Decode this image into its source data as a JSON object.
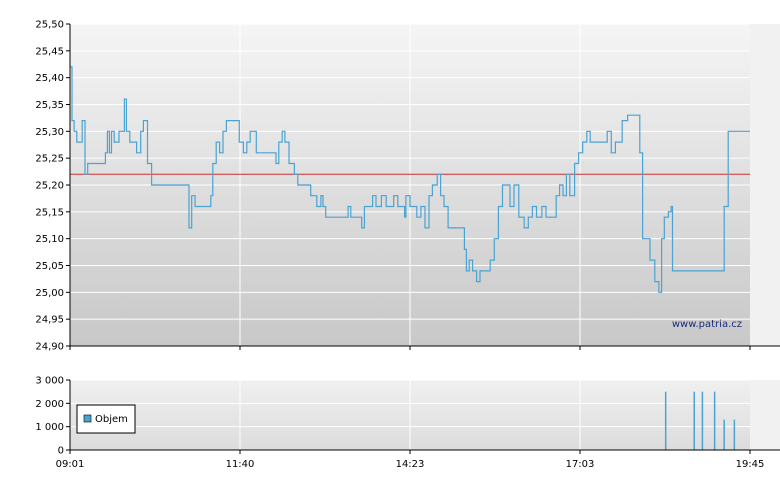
{
  "watermark": "www.patria.cz",
  "colors": {
    "price_line": "#4aa3d1",
    "reference_line": "#cc3333",
    "volume_bar": "#4aa3d1",
    "grid": "#ffffff",
    "axis": "#000000"
  },
  "chart_data": [
    {
      "type": "line",
      "title": "",
      "xlabel": "",
      "ylabel": "",
      "x_ticks": [
        "09:01",
        "11:40",
        "14:23",
        "17:03",
        "19:45"
      ],
      "y_ticks": [
        "24,90",
        "24,95",
        "25,00",
        "25,05",
        "25,10",
        "25,15",
        "25,20",
        "25,25",
        "25,30",
        "25,35",
        "25,40",
        "25,45",
        "25,50"
      ],
      "ylim": [
        24.9,
        25.5
      ],
      "grid": true,
      "reference_line": 25.22,
      "series": [
        {
          "values": [
            [
              0.0,
              25.42
            ],
            [
              0.3,
              25.32
            ],
            [
              0.6,
              25.3
            ],
            [
              1.0,
              25.28
            ],
            [
              1.4,
              25.28
            ],
            [
              1.8,
              25.32
            ],
            [
              2.2,
              25.22
            ],
            [
              2.6,
              25.24
            ],
            [
              3.2,
              25.24
            ],
            [
              4.8,
              25.24
            ],
            [
              5.2,
              25.26
            ],
            [
              5.5,
              25.3
            ],
            [
              5.8,
              25.26
            ],
            [
              6.1,
              25.3
            ],
            [
              6.5,
              25.28
            ],
            [
              7.2,
              25.3
            ],
            [
              7.6,
              25.3
            ],
            [
              8.0,
              25.36
            ],
            [
              8.3,
              25.3
            ],
            [
              8.8,
              25.28
            ],
            [
              9.3,
              25.28
            ],
            [
              9.8,
              25.26
            ],
            [
              10.4,
              25.3
            ],
            [
              10.8,
              25.32
            ],
            [
              11.4,
              25.24
            ],
            [
              12.0,
              25.2
            ],
            [
              13.0,
              25.2
            ],
            [
              15.5,
              25.2
            ],
            [
              17.0,
              25.2
            ],
            [
              17.5,
              25.12
            ],
            [
              17.9,
              25.18
            ],
            [
              18.4,
              25.16
            ],
            [
              20.3,
              25.16
            ],
            [
              20.7,
              25.18
            ],
            [
              21.0,
              25.24
            ],
            [
              21.5,
              25.28
            ],
            [
              22.0,
              25.26
            ],
            [
              22.5,
              25.3
            ],
            [
              23.0,
              25.32
            ],
            [
              24.5,
              25.32
            ],
            [
              24.9,
              25.28
            ],
            [
              25.5,
              25.26
            ],
            [
              26.0,
              25.28
            ],
            [
              26.5,
              25.3
            ],
            [
              27.0,
              25.3
            ],
            [
              27.4,
              25.26
            ],
            [
              29.5,
              25.26
            ],
            [
              30.3,
              25.24
            ],
            [
              30.7,
              25.28
            ],
            [
              31.2,
              25.3
            ],
            [
              31.6,
              25.28
            ],
            [
              32.2,
              25.24
            ],
            [
              33.0,
              25.22
            ],
            [
              33.5,
              25.2
            ],
            [
              35.0,
              25.2
            ],
            [
              35.4,
              25.18
            ],
            [
              36.0,
              25.18
            ],
            [
              36.3,
              25.16
            ],
            [
              36.9,
              25.18
            ],
            [
              37.2,
              25.16
            ],
            [
              37.6,
              25.14
            ],
            [
              40.5,
              25.14
            ],
            [
              40.9,
              25.16
            ],
            [
              41.3,
              25.14
            ],
            [
              42.5,
              25.14
            ],
            [
              42.9,
              25.12
            ],
            [
              43.3,
              25.16
            ],
            [
              44.5,
              25.18
            ],
            [
              45.0,
              25.16
            ],
            [
              45.8,
              25.18
            ],
            [
              46.5,
              25.16
            ],
            [
              47.2,
              25.16
            ],
            [
              47.6,
              25.18
            ],
            [
              48.2,
              25.16
            ],
            [
              49.0,
              25.16
            ],
            [
              49.2,
              25.14
            ],
            [
              49.4,
              25.18
            ],
            [
              50.0,
              25.16
            ],
            [
              50.5,
              25.16
            ],
            [
              51.0,
              25.14
            ],
            [
              51.6,
              25.16
            ],
            [
              52.2,
              25.12
            ],
            [
              52.8,
              25.18
            ],
            [
              53.3,
              25.2
            ],
            [
              54.0,
              25.22
            ],
            [
              54.5,
              25.18
            ],
            [
              55.0,
              25.16
            ],
            [
              55.6,
              25.12
            ],
            [
              57.5,
              25.12
            ],
            [
              58.0,
              25.08
            ],
            [
              58.3,
              25.04
            ],
            [
              58.7,
              25.06
            ],
            [
              59.2,
              25.04
            ],
            [
              59.8,
              25.02
            ],
            [
              60.3,
              25.04
            ],
            [
              61.4,
              25.04
            ],
            [
              61.8,
              25.06
            ],
            [
              62.4,
              25.1
            ],
            [
              63.0,
              25.16
            ],
            [
              63.6,
              25.2
            ],
            [
              64.2,
              25.2
            ],
            [
              64.7,
              25.16
            ],
            [
              65.3,
              25.2
            ],
            [
              66.0,
              25.14
            ],
            [
              66.8,
              25.12
            ],
            [
              67.4,
              25.14
            ],
            [
              68.0,
              25.16
            ],
            [
              68.6,
              25.14
            ],
            [
              69.4,
              25.16
            ],
            [
              70.0,
              25.14
            ],
            [
              71.5,
              25.18
            ],
            [
              72.0,
              25.2
            ],
            [
              72.5,
              25.18
            ],
            [
              73.0,
              25.22
            ],
            [
              73.5,
              25.18
            ],
            [
              74.2,
              25.24
            ],
            [
              74.8,
              25.26
            ],
            [
              75.4,
              25.28
            ],
            [
              76.0,
              25.3
            ],
            [
              76.5,
              25.28
            ],
            [
              78.5,
              25.28
            ],
            [
              79.0,
              25.3
            ],
            [
              79.6,
              25.26
            ],
            [
              80.2,
              25.28
            ],
            [
              80.8,
              25.28
            ],
            [
              81.2,
              25.32
            ],
            [
              82.0,
              25.33
            ],
            [
              83.4,
              25.33
            ],
            [
              83.8,
              25.26
            ],
            [
              84.2,
              25.1
            ],
            [
              85.3,
              25.06
            ],
            [
              86.0,
              25.02
            ],
            [
              86.6,
              25.0
            ],
            [
              87.0,
              25.1
            ],
            [
              87.4,
              25.14
            ],
            [
              88.0,
              25.15
            ],
            [
              88.4,
              25.16
            ],
            [
              88.6,
              25.04
            ],
            [
              92.0,
              25.04
            ],
            [
              95.6,
              25.04
            ],
            [
              96.2,
              25.16
            ],
            [
              96.8,
              25.3
            ],
            [
              98.0,
              25.3
            ],
            [
              100.0,
              25.3
            ]
          ]
        }
      ]
    },
    {
      "type": "bar",
      "title": "",
      "xlabel": "",
      "ylabel": "",
      "y_ticks": [
        "0",
        "1 000",
        "2 000",
        "3 000"
      ],
      "ylim": [
        0,
        3000
      ],
      "grid": true,
      "legend": {
        "placement": "left",
        "entries": [
          "Objem"
        ]
      },
      "series": [
        {
          "name": "Objem",
          "values": [
            [
              87.6,
              2500
            ],
            [
              91.8,
              2500
            ],
            [
              93.0,
              2500
            ],
            [
              94.8,
              2500
            ],
            [
              96.2,
              1300
            ],
            [
              97.7,
              1300
            ]
          ]
        }
      ]
    }
  ]
}
